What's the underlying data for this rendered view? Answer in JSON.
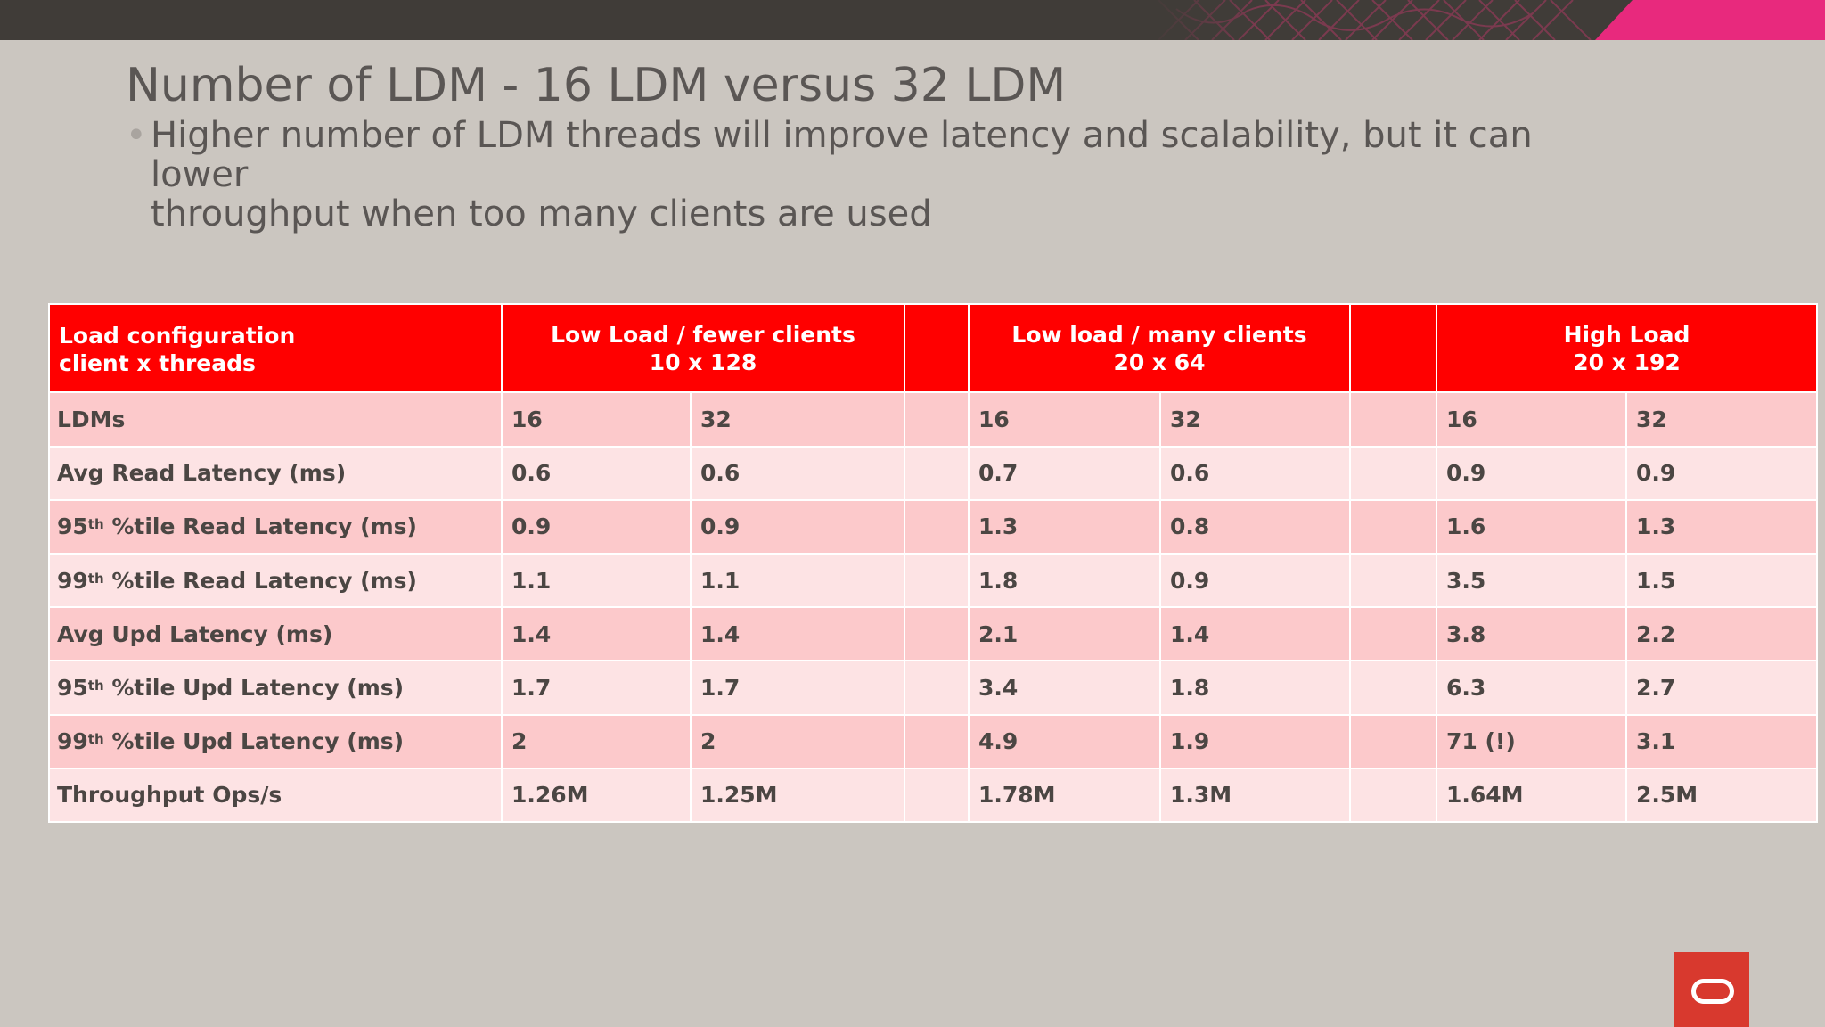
{
  "slide": {
    "title": "Number of LDM - 16 LDM versus 32 LDM",
    "bullet_line1": "Higher number of LDM threads will improve latency and scalability, but it can lower",
    "bullet_line2": "throughput when too many clients are used"
  },
  "table": {
    "header": {
      "label_line1": "Load configuration",
      "label_line2": "client x threads",
      "groups": [
        {
          "line1": "Low Load / fewer clients",
          "line2": "10 x 128"
        },
        {
          "line1": "Low load / many clients",
          "line2": "20 x 64"
        },
        {
          "line1": "High Load",
          "line2": "20 x 192"
        }
      ]
    },
    "ldm_row": {
      "label": "LDMs",
      "values": [
        "16",
        "32",
        "16",
        "32",
        "16",
        "32"
      ]
    },
    "rows": [
      {
        "label_pre": "Avg Read Latency (ms)",
        "sup": "",
        "label_post": "",
        "values": [
          "0.6",
          "0.6",
          "0.7",
          "0.6",
          "0.9",
          "0.9"
        ]
      },
      {
        "label_pre": "95",
        "sup": "th",
        "label_post": " %tile Read Latency (ms)",
        "values": [
          "0.9",
          "0.9",
          "1.3",
          "0.8",
          "1.6",
          "1.3"
        ]
      },
      {
        "label_pre": "99",
        "sup": "th",
        "label_post": " %tile Read Latency (ms)",
        "values": [
          "1.1",
          "1.1",
          "1.8",
          "0.9",
          "3.5",
          "1.5"
        ]
      },
      {
        "label_pre": "Avg Upd Latency (ms)",
        "sup": "",
        "label_post": "",
        "values": [
          "1.4",
          "1.4",
          "2.1",
          "1.4",
          "3.8",
          "2.2"
        ]
      },
      {
        "label_pre": "95",
        "sup": "th",
        "label_post": " %tile Upd Latency (ms)",
        "values": [
          "1.7",
          "1.7",
          "3.4",
          "1.8",
          "6.3",
          "2.7"
        ]
      },
      {
        "label_pre": "99",
        "sup": "th",
        "label_post": " %tile Upd Latency (ms)",
        "values": [
          "2",
          "2",
          "4.9",
          "1.9",
          "71 (!)",
          "3.1"
        ]
      },
      {
        "label_pre": "Throughput Ops/s",
        "sup": "",
        "label_post": "",
        "values": [
          "1.26M",
          "1.25M",
          "1.78M",
          "1.3M",
          "1.64M",
          "2.5M"
        ]
      }
    ]
  },
  "colors": {
    "header_red": "#ff0000",
    "row_dark": "#fcc9cb",
    "row_light": "#fde3e4",
    "accent_pink": "#e8297d",
    "logo_red": "#d8392e"
  },
  "icons": {
    "logo": "oracle-logo-icon"
  }
}
